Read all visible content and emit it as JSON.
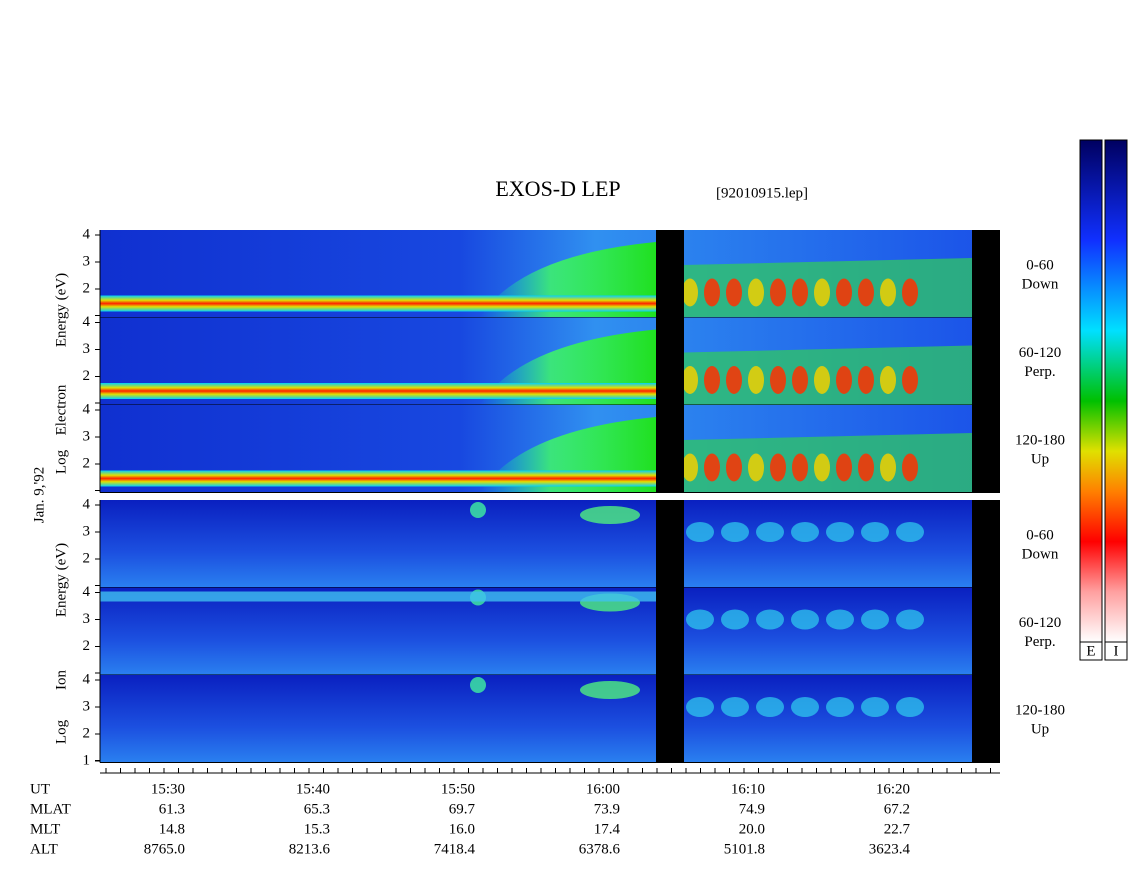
{
  "header": {
    "title": "EXOS-D LEP",
    "file": "[92010915.lep]"
  },
  "date": "Jan. 9,'92",
  "electron": {
    "axis_words": [
      "Log",
      "Electron",
      "Energy (eV)"
    ],
    "panels": [
      {
        "pitch": "0-60",
        "direction": "Down",
        "ticks": [
          "4",
          "3",
          "2"
        ]
      },
      {
        "pitch": "60-120",
        "direction": "Perp.",
        "ticks": [
          "4",
          "3",
          "2"
        ]
      },
      {
        "pitch": "120-180",
        "direction": "Up",
        "ticks": [
          "4",
          "3",
          "2"
        ]
      }
    ]
  },
  "ion": {
    "axis_words": [
      "Log",
      "Ion",
      "Energy (eV)"
    ],
    "panels": [
      {
        "pitch": "0-60",
        "direction": "Down",
        "ticks": [
          "4",
          "3",
          "2"
        ]
      },
      {
        "pitch": "60-120",
        "direction": "Perp.",
        "ticks": [
          "4",
          "3",
          "2"
        ]
      },
      {
        "pitch": "120-180",
        "direction": "Up",
        "ticks": [
          "4",
          "3",
          "2",
          "1"
        ]
      }
    ]
  },
  "time_table": {
    "rows": [
      [
        "UT",
        "15:30",
        "15:40",
        "15:50",
        "16:00",
        "16:10",
        "16:20"
      ],
      [
        "MLAT",
        "61.3",
        "65.3",
        "69.7",
        "73.9",
        "74.9",
        "67.2"
      ],
      [
        "MLT",
        "14.8",
        "15.3",
        "16.0",
        "17.4",
        "20.0",
        "22.7"
      ],
      [
        "ALT",
        "8765.0",
        "8213.6",
        "7418.4",
        "6378.6",
        "5101.8",
        "3623.4"
      ]
    ]
  },
  "colorbars": [
    "E",
    "I"
  ]
}
